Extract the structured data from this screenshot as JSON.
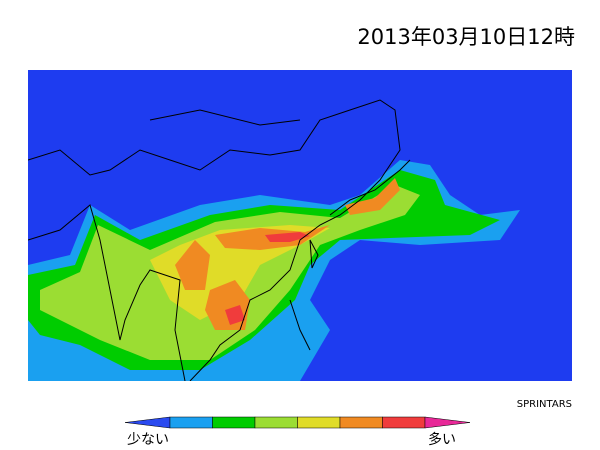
{
  "header": {
    "timestamp": "2013年03月10日12時"
  },
  "map": {
    "background": "#1e3cf0",
    "credit": "SPRINTARS"
  },
  "legend": {
    "low_label": "少ない",
    "high_label": "多い",
    "colors": [
      "#2a4af0",
      "#1aa0f0",
      "#00cc00",
      "#9bdd33",
      "#e0dc28",
      "#f08a22",
      "#f03c3c",
      "#e82898"
    ]
  }
}
